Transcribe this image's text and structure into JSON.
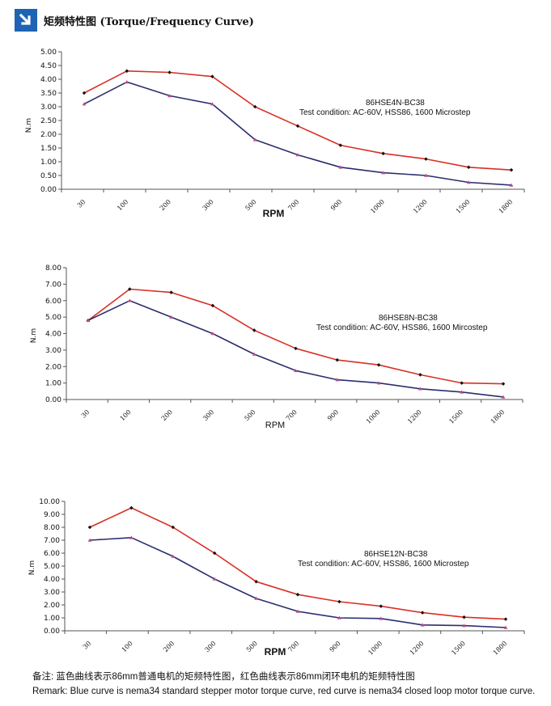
{
  "header": {
    "title": "矩频特性图 (Torque/Frequency Curve)",
    "icon": "arrow-down-right-icon"
  },
  "colors": {
    "red": "#d93025",
    "blue": "#2b2e6e",
    "accent": "#1e63b4",
    "axis": "#555555"
  },
  "chart_data": [
    {
      "type": "line",
      "title": "86HSE4N-BC38",
      "condition": "Test condition:   AC-60V,   HSS86,   1600 Microstep",
      "xlabel": "RPM",
      "ylabel": "N.m",
      "categories": [
        "30",
        "100",
        "200",
        "300",
        "500",
        "700",
        "900",
        "1000",
        "1200",
        "1500",
        "1800"
      ],
      "ylim": [
        0,
        5
      ],
      "yticks": [
        "0.00",
        "0.50",
        "1.00",
        "1.50",
        "2.00",
        "2.50",
        "3.00",
        "3.50",
        "4.00",
        "4.50",
        "5.00"
      ],
      "series": [
        {
          "name": "closed loop",
          "color": "red",
          "values": [
            3.5,
            4.3,
            4.25,
            4.1,
            3.0,
            2.3,
            1.6,
            1.3,
            1.1,
            0.8,
            0.7
          ]
        },
        {
          "name": "standard",
          "color": "blue",
          "values": [
            3.1,
            3.9,
            3.4,
            3.1,
            1.8,
            1.25,
            0.8,
            0.6,
            0.5,
            0.25,
            0.15
          ]
        }
      ]
    },
    {
      "type": "line",
      "title": "86HSE8N-BC38",
      "condition": "Test condition:   AC-60V,   HSS86,   1600 Mircostep",
      "xlabel": "RPM",
      "ylabel": "N.m",
      "categories": [
        "30",
        "100",
        "200",
        "300",
        "500",
        "700",
        "900",
        "1000",
        "1200",
        "1500",
        "1800"
      ],
      "ylim": [
        0,
        8
      ],
      "yticks": [
        "0.00",
        "1.00",
        "2.00",
        "3.00",
        "4.00",
        "5.00",
        "6.00",
        "7.00",
        "8.00"
      ],
      "series": [
        {
          "name": "closed loop",
          "color": "red",
          "values": [
            4.8,
            6.7,
            6.5,
            5.7,
            4.2,
            3.1,
            2.4,
            2.1,
            1.5,
            1.0,
            0.95
          ]
        },
        {
          "name": "standard",
          "color": "blue",
          "values": [
            4.8,
            6.0,
            5.0,
            4.0,
            2.75,
            1.75,
            1.2,
            1.0,
            0.65,
            0.45,
            0.15
          ]
        }
      ]
    },
    {
      "type": "line",
      "title": "86HSE12N-BC38",
      "condition": "Test condition:     AC-60V,    HSS86, 1600 Microstep",
      "xlabel": "RPM",
      "ylabel": "N.m",
      "categories": [
        "30",
        "100",
        "200",
        "300",
        "500",
        "700",
        "900",
        "1000",
        "1200",
        "1500",
        "1800"
      ],
      "ylim": [
        0,
        10
      ],
      "yticks": [
        "0.00",
        "1.00",
        "2.00",
        "3.00",
        "4.00",
        "5.00",
        "6.00",
        "7.00",
        "8.00",
        "9.00",
        "10.00"
      ],
      "series": [
        {
          "name": "closed loop",
          "color": "red",
          "values": [
            8.0,
            9.5,
            8.0,
            6.0,
            3.8,
            2.8,
            2.25,
            1.9,
            1.4,
            1.05,
            0.9
          ]
        },
        {
          "name": "standard",
          "color": "blue",
          "values": [
            7.0,
            7.2,
            5.75,
            4.0,
            2.5,
            1.5,
            1.0,
            0.95,
            0.45,
            0.4,
            0.25
          ]
        }
      ]
    }
  ],
  "remark": {
    "zh": "备注:   蓝色曲线表示86mm普通电机的矩频特性图，红色曲线表示86mm闭环电机的矩频特性图",
    "en": "Remark: Blue curve is nema34 standard stepper motor torque curve, red curve is nema34 closed loop motor torque curve."
  }
}
